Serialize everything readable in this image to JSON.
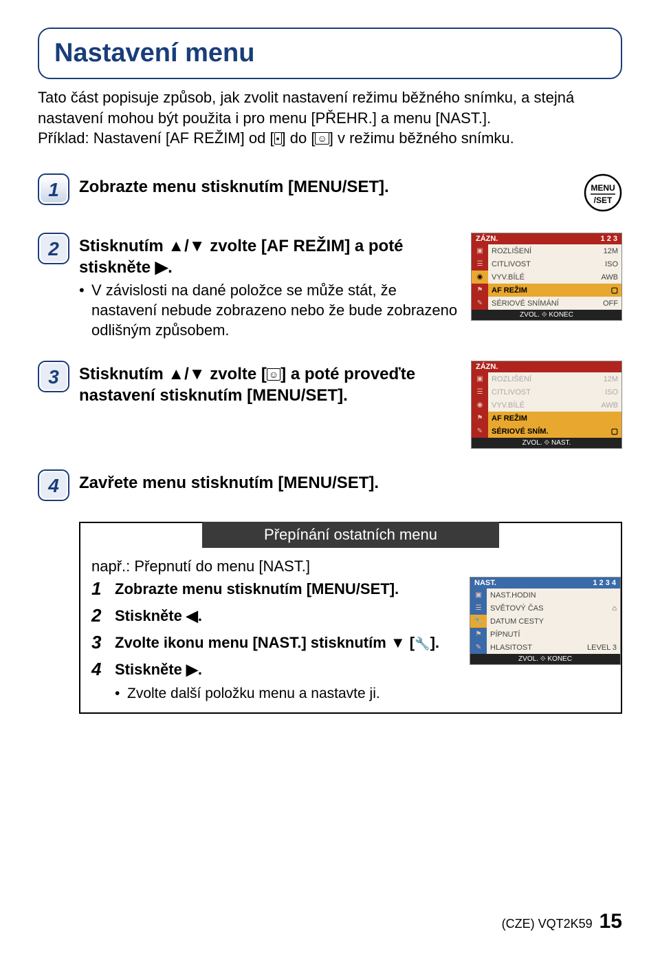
{
  "title": "Nastavení menu",
  "intro_l1": "Tato část popisuje způsob, jak zvolit nastavení režimu běžného snímku, a stejná nastavení mohou být použita i pro menu [PŘEHR.] a menu [NAST.].",
  "intro_l2_a": "Příklad: Nastavení [AF REŽIM] od [",
  "intro_l2_b": "] do [",
  "intro_l2_c": "] v režimu běžného snímku.",
  "step1": {
    "text": "Zobrazte menu stisknutím [MENU/SET]."
  },
  "step2": {
    "head_a": "Stisknutím ▲/▼ zvolte [AF REŽIM] a poté stiskněte ▶.",
    "note": "V závislosti na dané položce se může stát, že nastavení nebude zobrazeno nebo že bude zobrazeno odlišným způsobem."
  },
  "step3": {
    "head_a": "Stisknutím ▲/▼ zvolte [",
    "head_b": "] a poté proveďte nastavení stisknutím [MENU/SET]."
  },
  "step4": {
    "text": "Zavřete menu stisknutím [MENU/SET]."
  },
  "subbox": {
    "title": "Přepínání ostatních menu",
    "lead": "např.: Přepnutí do menu [NAST.]",
    "s1": "Zobrazte menu stisknutím [MENU/SET].",
    "s2": "Stiskněte ◀.",
    "s3_a": "Zvolte ikonu menu [NAST.] stisknutím ▼ [",
    "s3_b": "].",
    "s4": "Stiskněte ▶.",
    "s4_note": "Zvolte další položku menu a nastavte ji."
  },
  "menu_button": {
    "top": "MENU",
    "bot": "/SET"
  },
  "scr1": {
    "head_l": "ZÁZN.",
    "head_r": "1 2 3",
    "items": [
      {
        "l": "ROZLIŠENÍ",
        "r": "12M",
        "hl": false
      },
      {
        "l": "CITLIVOST",
        "r": "ISO",
        "hl": false
      },
      {
        "l": "VYV.BÍLÉ",
        "r": "AWB",
        "hl": false
      },
      {
        "l": "AF REŽIM",
        "r": "▢",
        "hl": true
      },
      {
        "l": "SÉRIOVÉ SNÍMÁNÍ",
        "r": "OFF",
        "hl": false
      }
    ],
    "foot": "ZVOL. ⟐ KONEC"
  },
  "scr2": {
    "head_l": "ZÁZN.",
    "head_r": "",
    "items": [
      {
        "l": "ROZLIŠENÍ",
        "r": "12M",
        "fade": true
      },
      {
        "l": "CITLIVOST",
        "r": "ISO",
        "fade": true
      },
      {
        "l": "VYV.BÍLÉ",
        "r": "AWB",
        "fade": true
      },
      {
        "l": "AF REŽIM",
        "r": "",
        "hl": true
      },
      {
        "l": "SÉRIOVÉ SNÍM.",
        "r": "▢",
        "hl": true
      }
    ],
    "foot": "ZVOL. ⟐ NAST."
  },
  "scr3": {
    "head_l": "NAST.",
    "head_r": "1 2 3 4",
    "items": [
      {
        "l": "NAST.HODIN",
        "r": "",
        "hl": false
      },
      {
        "l": "SVĚTOVÝ ČAS",
        "r": "⌂",
        "hl": false
      },
      {
        "l": "DATUM CESTY",
        "r": "",
        "hl": false
      },
      {
        "l": "PÍPNUTÍ",
        "r": "",
        "hl": false
      },
      {
        "l": "HLASITOST",
        "r": "LEVEL 3",
        "hl": false
      }
    ],
    "foot": "ZVOL. ⟐ KONEC"
  },
  "footer": {
    "code": "(CZE) VQT2K59",
    "page": "15"
  },
  "colors": {
    "title_blue": "#1a3d7a",
    "scr_red": "#b0241e",
    "scr_orange": "#e8a830",
    "scr_cream": "#f4eee4",
    "subbar_gray": "#3a3a3a"
  }
}
